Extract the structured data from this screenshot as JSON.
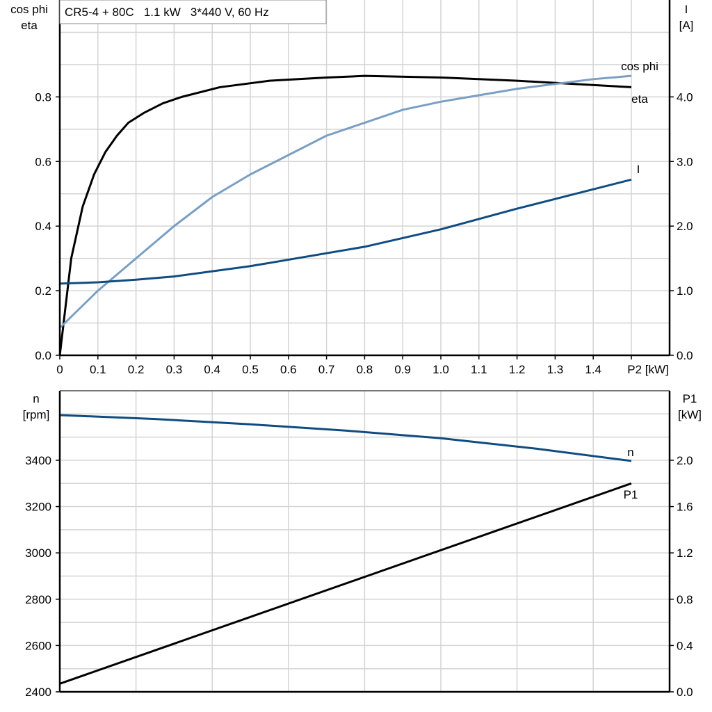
{
  "chart_data": [
    {
      "type": "line",
      "title": "CR5-4 + 80C   1.1 kW   3*440 V, 60 Hz",
      "xlabel": "P2 [kW]",
      "ylabel_left": [
        "cos phi",
        "eta"
      ],
      "ylabel_right": [
        "I",
        "[A]"
      ],
      "xlim": [
        0,
        1.6
      ],
      "ylim_left": [
        0,
        1.1
      ],
      "ylim_right": [
        0,
        5.5
      ],
      "x_ticks": [
        "0",
        "0.1",
        "0.2",
        "0.3",
        "0.4",
        "0.5",
        "0.6",
        "0.7",
        "0.8",
        "0.9",
        "1.0",
        "1.1",
        "1.2",
        "1.3",
        "1.4"
      ],
      "y_ticks_left": [
        "0.0",
        "0.2",
        "0.4",
        "0.6",
        "0.8"
      ],
      "y_ticks_right": [
        "0.0",
        "1.0",
        "2.0",
        "3.0",
        "4.0"
      ],
      "grid": true,
      "series": [
        {
          "name": "eta",
          "axis": "left",
          "color": "#000000",
          "x": [
            0,
            0.03,
            0.06,
            0.09,
            0.12,
            0.15,
            0.18,
            0.22,
            0.27,
            0.32,
            0.42,
            0.55,
            0.7,
            0.8,
            1.0,
            1.2,
            1.35,
            1.5
          ],
          "y": [
            0,
            0.3,
            0.46,
            0.56,
            0.63,
            0.68,
            0.72,
            0.75,
            0.78,
            0.8,
            0.83,
            0.85,
            0.86,
            0.865,
            0.86,
            0.85,
            0.84,
            0.83
          ]
        },
        {
          "name": "cos phi",
          "axis": "left",
          "color": "#7a9fc3",
          "x": [
            0,
            0.1,
            0.2,
            0.3,
            0.4,
            0.5,
            0.6,
            0.7,
            0.8,
            0.9,
            1.0,
            1.1,
            1.2,
            1.3,
            1.4,
            1.5
          ],
          "y": [
            0.085,
            0.2,
            0.3,
            0.4,
            0.49,
            0.56,
            0.62,
            0.68,
            0.72,
            0.76,
            0.785,
            0.805,
            0.825,
            0.84,
            0.855,
            0.865
          ]
        },
        {
          "name": "I",
          "axis": "right",
          "color": "#0f4c81",
          "x": [
            0,
            0.1,
            0.2,
            0.3,
            0.5,
            0.8,
            1.0,
            1.2,
            1.5
          ],
          "y": [
            1.11,
            1.13,
            1.17,
            1.22,
            1.38,
            1.68,
            1.95,
            2.27,
            2.72
          ]
        }
      ]
    },
    {
      "type": "line",
      "ylabel_left": [
        "n",
        "[rpm]"
      ],
      "ylabel_right": [
        "P1",
        "[kW]"
      ],
      "xlim": [
        0,
        1.6
      ],
      "ylim_left": [
        2400,
        3700
      ],
      "ylim_right": [
        0,
        2.6
      ],
      "y_ticks_left": [
        "2400",
        "2600",
        "2800",
        "3000",
        "3200",
        "3400"
      ],
      "y_ticks_right": [
        "0.0",
        "0.4",
        "0.8",
        "1.2",
        "1.6",
        "2.0"
      ],
      "grid": true,
      "series": [
        {
          "name": "n",
          "axis": "left",
          "color": "#0f4c81",
          "x": [
            0,
            0.25,
            0.5,
            0.75,
            1.0,
            1.25,
            1.5
          ],
          "y": [
            3595,
            3578,
            3555,
            3528,
            3495,
            3450,
            3397
          ]
        },
        {
          "name": "P1",
          "axis": "right",
          "color": "#000000",
          "x": [
            0,
            1.5
          ],
          "y": [
            0.07,
            1.8
          ]
        }
      ]
    }
  ]
}
